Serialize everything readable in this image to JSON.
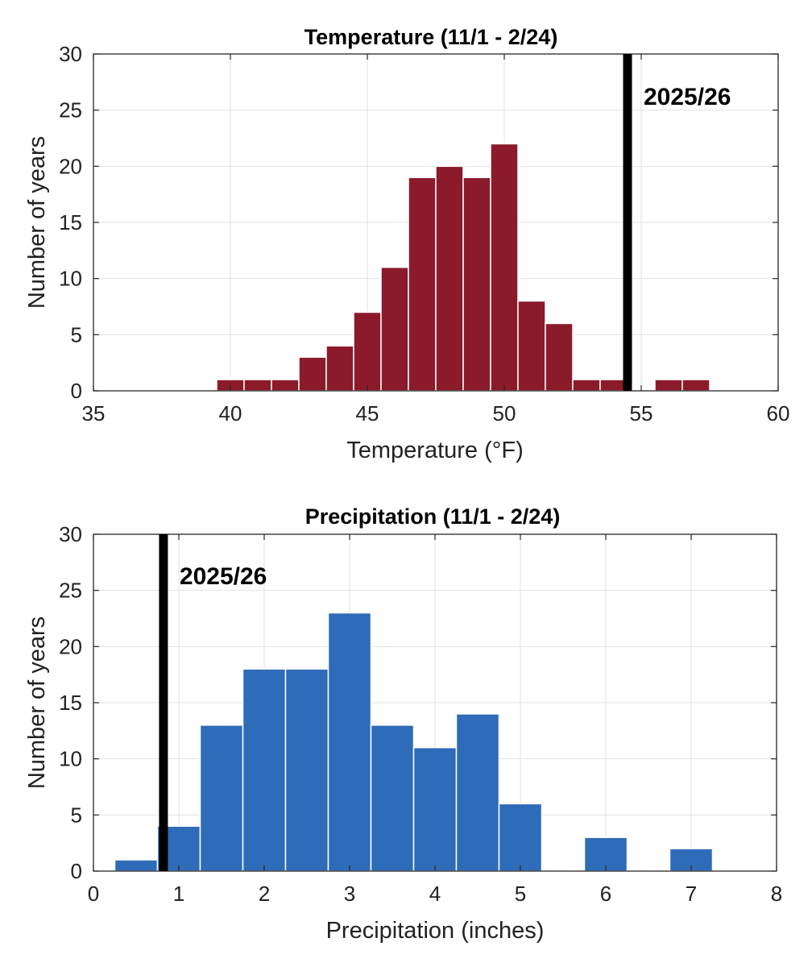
{
  "chart_data": [
    {
      "type": "bar",
      "id": "temperature",
      "title": "Temperature (11/1 - 2/24)",
      "xlabel": "Temperature (°F)",
      "ylabel": "Number of years",
      "xlim": [
        35,
        60
      ],
      "ylim": [
        0,
        30
      ],
      "xticks": [
        "35",
        "40",
        "45",
        "50",
        "55",
        "60"
      ],
      "yticks": [
        "0",
        "5",
        "10",
        "15",
        "20",
        "25",
        "30"
      ],
      "grid": true,
      "bar_color": "#8b1a2b",
      "bins": [
        {
          "start": 39.5,
          "end": 40.5,
          "count": 1
        },
        {
          "start": 40.5,
          "end": 41.5,
          "count": 1
        },
        {
          "start": 41.5,
          "end": 42.5,
          "count": 1
        },
        {
          "start": 42.5,
          "end": 43.5,
          "count": 3
        },
        {
          "start": 43.5,
          "end": 44.5,
          "count": 4
        },
        {
          "start": 44.5,
          "end": 45.5,
          "count": 7
        },
        {
          "start": 45.5,
          "end": 46.5,
          "count": 11
        },
        {
          "start": 46.5,
          "end": 47.5,
          "count": 19
        },
        {
          "start": 47.5,
          "end": 48.5,
          "count": 20
        },
        {
          "start": 48.5,
          "end": 49.5,
          "count": 19
        },
        {
          "start": 49.5,
          "end": 50.5,
          "count": 22
        },
        {
          "start": 50.5,
          "end": 51.5,
          "count": 8
        },
        {
          "start": 51.5,
          "end": 52.5,
          "count": 6
        },
        {
          "start": 52.5,
          "end": 53.5,
          "count": 1
        },
        {
          "start": 53.5,
          "end": 54.5,
          "count": 1
        },
        {
          "start": 55.5,
          "end": 56.5,
          "count": 1
        },
        {
          "start": 56.5,
          "end": 57.5,
          "count": 1
        }
      ],
      "reference": {
        "label": "2025/26",
        "value": 54.5,
        "color": "#000000"
      }
    },
    {
      "type": "bar",
      "id": "precipitation",
      "title": "Precipitation (11/1 - 2/24)",
      "xlabel": "Precipitation (inches)",
      "ylabel": "Number of years",
      "xlim": [
        0,
        8
      ],
      "ylim": [
        0,
        30
      ],
      "xticks": [
        "0",
        "1",
        "2",
        "3",
        "4",
        "5",
        "6",
        "7",
        "8"
      ],
      "yticks": [
        "0",
        "5",
        "10",
        "15",
        "20",
        "25",
        "30"
      ],
      "grid": true,
      "bar_color": "#2e6bb8",
      "bins": [
        {
          "start": 0.25,
          "end": 0.75,
          "count": 1
        },
        {
          "start": 0.75,
          "end": 1.25,
          "count": 4
        },
        {
          "start": 1.25,
          "end": 1.75,
          "count": 13
        },
        {
          "start": 1.75,
          "end": 2.25,
          "count": 18
        },
        {
          "start": 2.25,
          "end": 2.75,
          "count": 18
        },
        {
          "start": 2.75,
          "end": 3.25,
          "count": 23
        },
        {
          "start": 3.25,
          "end": 3.75,
          "count": 13
        },
        {
          "start": 3.75,
          "end": 4.25,
          "count": 11
        },
        {
          "start": 4.25,
          "end": 4.75,
          "count": 14
        },
        {
          "start": 4.75,
          "end": 5.25,
          "count": 6
        },
        {
          "start": 5.75,
          "end": 6.25,
          "count": 3
        },
        {
          "start": 6.75,
          "end": 7.25,
          "count": 2
        }
      ],
      "reference": {
        "label": "2025/26",
        "value": 0.82,
        "color": "#000000"
      }
    }
  ]
}
